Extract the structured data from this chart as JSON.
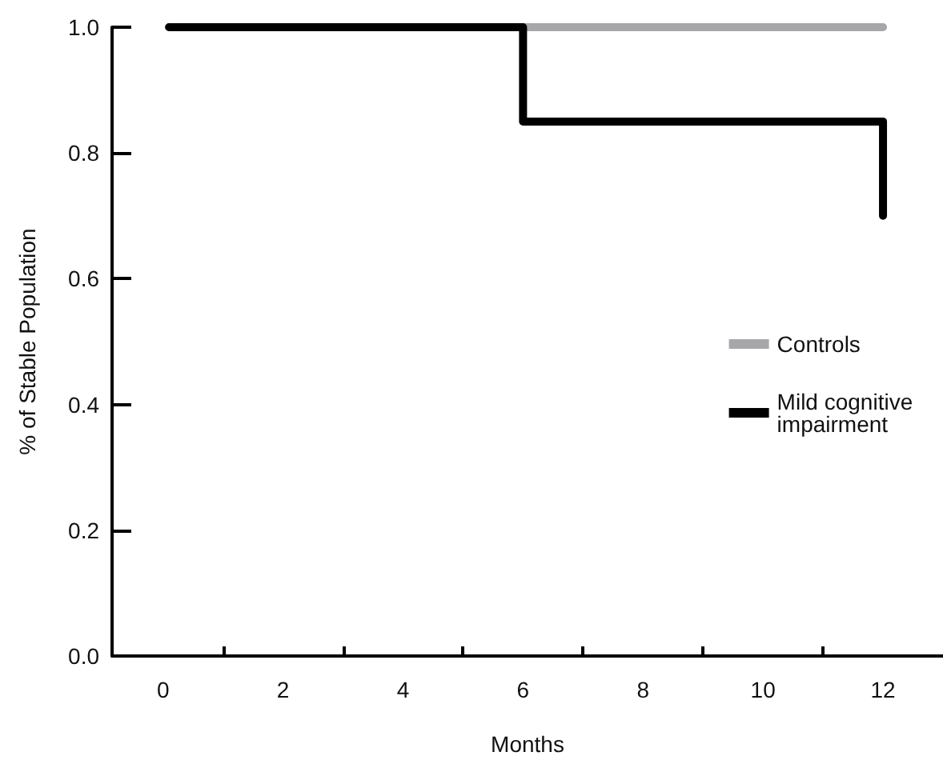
{
  "chart_data": {
    "type": "step",
    "xlabel": "Months",
    "ylabel": "% of Stable Population",
    "series": [
      {
        "name": "Controls",
        "color": "#a7a7a9",
        "x": [
          0.1,
          12
        ],
        "values": [
          1.0,
          1.0
        ]
      },
      {
        "name": "Mild cognitive impairment",
        "color": "#000000",
        "x": [
          0.1,
          6,
          12,
          12
        ],
        "values": [
          1.0,
          0.85,
          0.85,
          0.7
        ]
      }
    ],
    "xlim": [
      -0.85,
      13
    ],
    "xticks": [
      0,
      {
        "value": 1,
        "label": null
      },
      2,
      {
        "value": 3,
        "label": null
      },
      4,
      {
        "value": 5,
        "label": null
      },
      6,
      {
        "value": 7,
        "label": null
      },
      8,
      {
        "value": 9,
        "label": null
      },
      10,
      {
        "value": 11,
        "label": null
      },
      12
    ],
    "ylim": [
      0,
      1.0
    ],
    "yticks": [
      {
        "value": 0,
        "label": "0.0"
      },
      0.2,
      0.4,
      0.6,
      0.8,
      {
        "value": 1.0,
        "label": "1.0"
      }
    ],
    "legend": "right",
    "grid": false,
    "marker": "none",
    "line_style": "solid"
  }
}
